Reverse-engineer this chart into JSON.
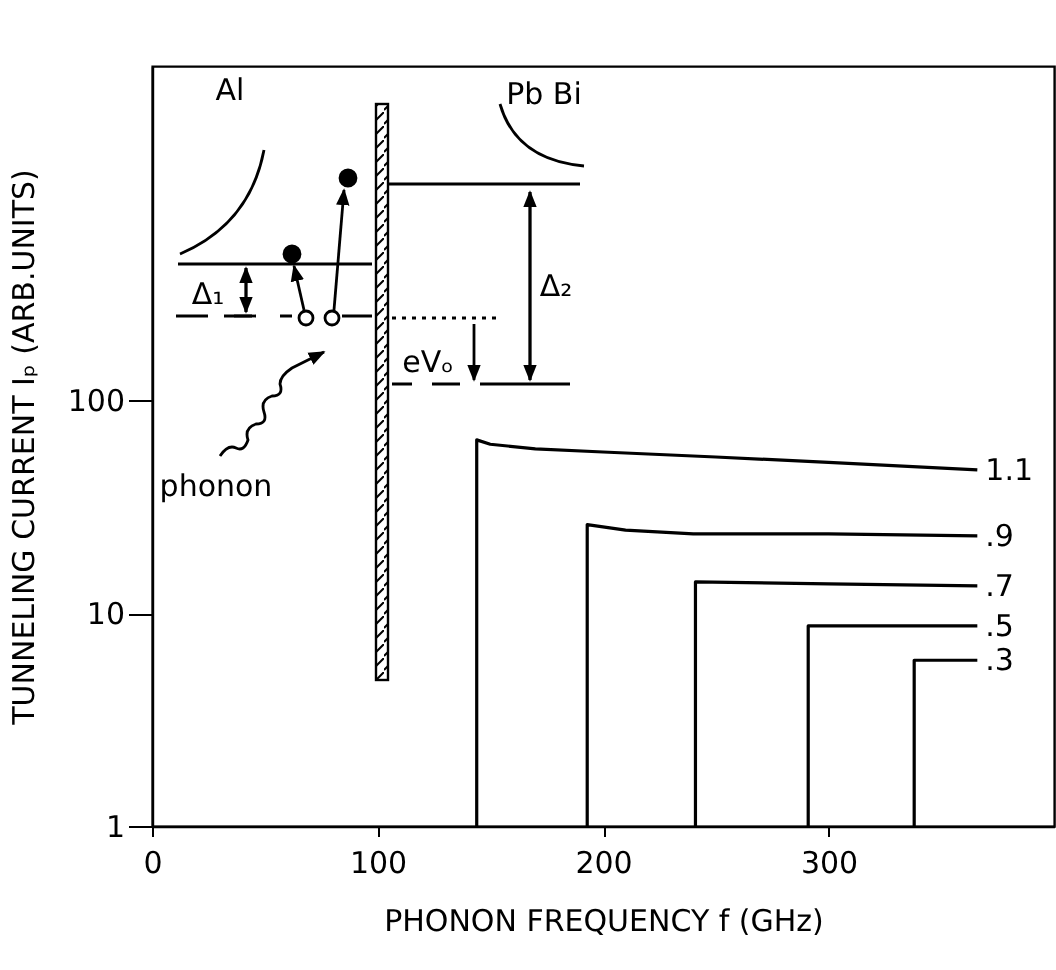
{
  "chart_data": {
    "type": "line",
    "xlabel": "PHONON FREQUENCY   f   (GHz)",
    "ylabel": "TUNNELING CURRENT  Iₚ (ARB.UNITS)",
    "xlim": [
      0,
      400
    ],
    "xticks": [
      0,
      100,
      200,
      300
    ],
    "ylim": [
      1,
      3700
    ],
    "yticks": [
      1,
      10,
      100
    ],
    "log": "y",
    "grid": false,
    "legend": false,
    "series": [
      {
        "name": "1.1",
        "color": "#000000",
        "x": [
          144,
          144,
          150,
          170,
          200,
          250,
          300,
          366
        ],
        "values": [
          1,
          65,
          62,
          59,
          57,
          54,
          51,
          47
        ]
      },
      {
        "name": ".9",
        "color": "#000000",
        "x": [
          193,
          193,
          210,
          240,
          300,
          366
        ],
        "values": [
          1,
          26,
          24.5,
          23.5,
          23.5,
          23
        ]
      },
      {
        "name": ".7",
        "color": "#000000",
        "x": [
          241,
          241,
          300,
          366
        ],
        "values": [
          1,
          14,
          13.7,
          13.4
        ]
      },
      {
        "name": ".5",
        "color": "#000000",
        "x": [
          291,
          291,
          366
        ],
        "values": [
          1,
          8.7,
          8.7
        ]
      },
      {
        "name": ".3",
        "color": "#000000",
        "x": [
          338,
          338,
          366
        ],
        "values": [
          1,
          6,
          6
        ]
      }
    ],
    "annotations": [
      "Al",
      "Pb Bi",
      "Δ₁",
      "Δ₂",
      "eVₒ",
      "phonon"
    ]
  }
}
